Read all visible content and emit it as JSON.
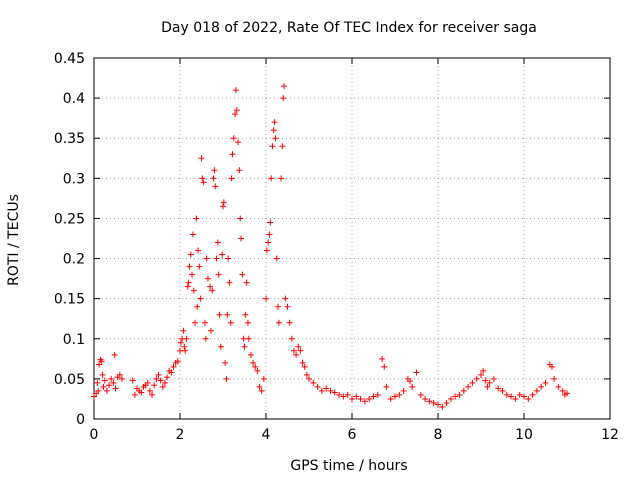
{
  "chart_data": {
    "type": "scatter",
    "title": "Day 018 of 2022, Rate Of TEC Index for receiver saga",
    "xlabel": "GPS time / hours",
    "ylabel": "ROTI / TECUs",
    "xlim": [
      0,
      12
    ],
    "ylim": [
      0,
      0.45
    ],
    "xticks": [
      "0",
      "2",
      "4",
      "6",
      "8",
      "10",
      "12"
    ],
    "yticks": [
      "0",
      "0.05",
      "0.1",
      "0.15",
      "0.2",
      "0.25",
      "0.3",
      "0.35",
      "0.4",
      "0.45"
    ],
    "grid": true,
    "marker": "+",
    "color": "#ff0000",
    "series": [
      {
        "name": "ROTI",
        "points": [
          [
            0.0,
            0.028
          ],
          [
            0.05,
            0.032
          ],
          [
            0.08,
            0.045
          ],
          [
            0.1,
            0.035
          ],
          [
            0.12,
            0.068
          ],
          [
            0.15,
            0.074
          ],
          [
            0.18,
            0.072
          ],
          [
            0.2,
            0.055
          ],
          [
            0.22,
            0.04
          ],
          [
            0.25,
            0.048
          ],
          [
            0.3,
            0.035
          ],
          [
            0.35,
            0.042
          ],
          [
            0.4,
            0.05
          ],
          [
            0.45,
            0.045
          ],
          [
            0.48,
            0.08
          ],
          [
            0.5,
            0.038
          ],
          [
            0.55,
            0.052
          ],
          [
            0.6,
            0.055
          ],
          [
            0.65,
            0.05
          ],
          [
            0.9,
            0.048
          ],
          [
            0.95,
            0.03
          ],
          [
            1.0,
            0.038
          ],
          [
            1.05,
            0.035
          ],
          [
            1.1,
            0.033
          ],
          [
            1.15,
            0.04
          ],
          [
            1.2,
            0.042
          ],
          [
            1.25,
            0.045
          ],
          [
            1.3,
            0.035
          ],
          [
            1.35,
            0.03
          ],
          [
            1.4,
            0.042
          ],
          [
            1.45,
            0.05
          ],
          [
            1.5,
            0.055
          ],
          [
            1.55,
            0.048
          ],
          [
            1.6,
            0.04
          ],
          [
            1.65,
            0.045
          ],
          [
            1.7,
            0.052
          ],
          [
            1.75,
            0.06
          ],
          [
            1.8,
            0.058
          ],
          [
            1.85,
            0.065
          ],
          [
            1.9,
            0.07
          ],
          [
            1.95,
            0.072
          ],
          [
            2.0,
            0.085
          ],
          [
            2.02,
            0.095
          ],
          [
            2.05,
            0.1
          ],
          [
            2.08,
            0.11
          ],
          [
            2.1,
            0.09
          ],
          [
            2.12,
            0.085
          ],
          [
            2.15,
            0.1
          ],
          [
            2.18,
            0.165
          ],
          [
            2.2,
            0.17
          ],
          [
            2.22,
            0.19
          ],
          [
            2.25,
            0.205
          ],
          [
            2.28,
            0.18
          ],
          [
            2.3,
            0.23
          ],
          [
            2.32,
            0.16
          ],
          [
            2.35,
            0.12
          ],
          [
            2.38,
            0.25
          ],
          [
            2.4,
            0.14
          ],
          [
            2.42,
            0.21
          ],
          [
            2.45,
            0.19
          ],
          [
            2.48,
            0.15
          ],
          [
            2.5,
            0.325
          ],
          [
            2.52,
            0.3
          ],
          [
            2.55,
            0.295
          ],
          [
            2.58,
            0.12
          ],
          [
            2.6,
            0.1
          ],
          [
            2.62,
            0.2
          ],
          [
            2.65,
            0.175
          ],
          [
            2.7,
            0.165
          ],
          [
            2.72,
            0.11
          ],
          [
            2.75,
            0.16
          ],
          [
            2.78,
            0.3
          ],
          [
            2.8,
            0.31
          ],
          [
            2.82,
            0.29
          ],
          [
            2.85,
            0.2
          ],
          [
            2.88,
            0.22
          ],
          [
            2.9,
            0.18
          ],
          [
            2.92,
            0.13
          ],
          [
            2.95,
            0.09
          ],
          [
            2.98,
            0.205
          ],
          [
            3.0,
            0.265
          ],
          [
            3.02,
            0.27
          ],
          [
            3.05,
            0.07
          ],
          [
            3.08,
            0.05
          ],
          [
            3.1,
            0.13
          ],
          [
            3.12,
            0.2
          ],
          [
            3.15,
            0.17
          ],
          [
            3.18,
            0.12
          ],
          [
            3.2,
            0.3
          ],
          [
            3.22,
            0.33
          ],
          [
            3.25,
            0.35
          ],
          [
            3.28,
            0.38
          ],
          [
            3.3,
            0.41
          ],
          [
            3.32,
            0.385
          ],
          [
            3.35,
            0.345
          ],
          [
            3.38,
            0.31
          ],
          [
            3.4,
            0.25
          ],
          [
            3.42,
            0.225
          ],
          [
            3.45,
            0.18
          ],
          [
            3.48,
            0.1
          ],
          [
            3.5,
            0.09
          ],
          [
            3.52,
            0.13
          ],
          [
            3.55,
            0.17
          ],
          [
            3.58,
            0.12
          ],
          [
            3.6,
            0.1
          ],
          [
            3.65,
            0.08
          ],
          [
            3.7,
            0.07
          ],
          [
            3.75,
            0.065
          ],
          [
            3.8,
            0.06
          ],
          [
            3.85,
            0.04
          ],
          [
            3.9,
            0.035
          ],
          [
            3.95,
            0.05
          ],
          [
            4.0,
            0.15
          ],
          [
            4.02,
            0.21
          ],
          [
            4.05,
            0.22
          ],
          [
            4.08,
            0.23
          ],
          [
            4.1,
            0.245
          ],
          [
            4.12,
            0.3
          ],
          [
            4.15,
            0.34
          ],
          [
            4.18,
            0.36
          ],
          [
            4.2,
            0.37
          ],
          [
            4.22,
            0.35
          ],
          [
            4.25,
            0.2
          ],
          [
            4.28,
            0.14
          ],
          [
            4.3,
            0.12
          ],
          [
            4.35,
            0.3
          ],
          [
            4.38,
            0.34
          ],
          [
            4.4,
            0.4
          ],
          [
            4.42,
            0.415
          ],
          [
            4.45,
            0.15
          ],
          [
            4.5,
            0.14
          ],
          [
            4.55,
            0.12
          ],
          [
            4.6,
            0.1
          ],
          [
            4.65,
            0.085
          ],
          [
            4.7,
            0.08
          ],
          [
            4.75,
            0.09
          ],
          [
            4.8,
            0.085
          ],
          [
            4.85,
            0.07
          ],
          [
            4.9,
            0.065
          ],
          [
            4.95,
            0.055
          ],
          [
            5.0,
            0.05
          ],
          [
            5.1,
            0.045
          ],
          [
            5.2,
            0.04
          ],
          [
            5.3,
            0.035
          ],
          [
            5.4,
            0.038
          ],
          [
            5.5,
            0.035
          ],
          [
            5.6,
            0.033
          ],
          [
            5.7,
            0.03
          ],
          [
            5.8,
            0.028
          ],
          [
            5.9,
            0.03
          ],
          [
            6.0,
            0.025
          ],
          [
            6.1,
            0.028
          ],
          [
            6.2,
            0.025
          ],
          [
            6.3,
            0.022
          ],
          [
            6.4,
            0.025
          ],
          [
            6.5,
            0.028
          ],
          [
            6.6,
            0.03
          ],
          [
            6.7,
            0.075
          ],
          [
            6.75,
            0.065
          ],
          [
            6.8,
            0.04
          ],
          [
            6.9,
            0.025
          ],
          [
            7.0,
            0.028
          ],
          [
            7.1,
            0.03
          ],
          [
            7.2,
            0.035
          ],
          [
            7.3,
            0.05
          ],
          [
            7.35,
            0.047
          ],
          [
            7.4,
            0.04
          ],
          [
            7.5,
            0.058
          ],
          [
            7.6,
            0.03
          ],
          [
            7.7,
            0.025
          ],
          [
            7.8,
            0.022
          ],
          [
            7.9,
            0.02
          ],
          [
            8.0,
            0.018
          ],
          [
            8.1,
            0.015
          ],
          [
            8.2,
            0.02
          ],
          [
            8.3,
            0.025
          ],
          [
            8.4,
            0.028
          ],
          [
            8.5,
            0.03
          ],
          [
            8.6,
            0.035
          ],
          [
            8.7,
            0.04
          ],
          [
            8.8,
            0.045
          ],
          [
            8.9,
            0.05
          ],
          [
            9.0,
            0.055
          ],
          [
            9.05,
            0.06
          ],
          [
            9.1,
            0.048
          ],
          [
            9.15,
            0.04
          ],
          [
            9.2,
            0.045
          ],
          [
            9.3,
            0.05
          ],
          [
            9.4,
            0.038
          ],
          [
            9.5,
            0.035
          ],
          [
            9.6,
            0.03
          ],
          [
            9.7,
            0.028
          ],
          [
            9.8,
            0.025
          ],
          [
            9.9,
            0.03
          ],
          [
            10.0,
            0.028
          ],
          [
            10.1,
            0.025
          ],
          [
            10.2,
            0.03
          ],
          [
            10.3,
            0.035
          ],
          [
            10.4,
            0.04
          ],
          [
            10.5,
            0.045
          ],
          [
            10.6,
            0.068
          ],
          [
            10.65,
            0.065
          ],
          [
            10.7,
            0.05
          ],
          [
            10.8,
            0.04
          ],
          [
            10.9,
            0.035
          ],
          [
            10.95,
            0.03
          ],
          [
            11.0,
            0.032
          ]
        ]
      }
    ]
  }
}
